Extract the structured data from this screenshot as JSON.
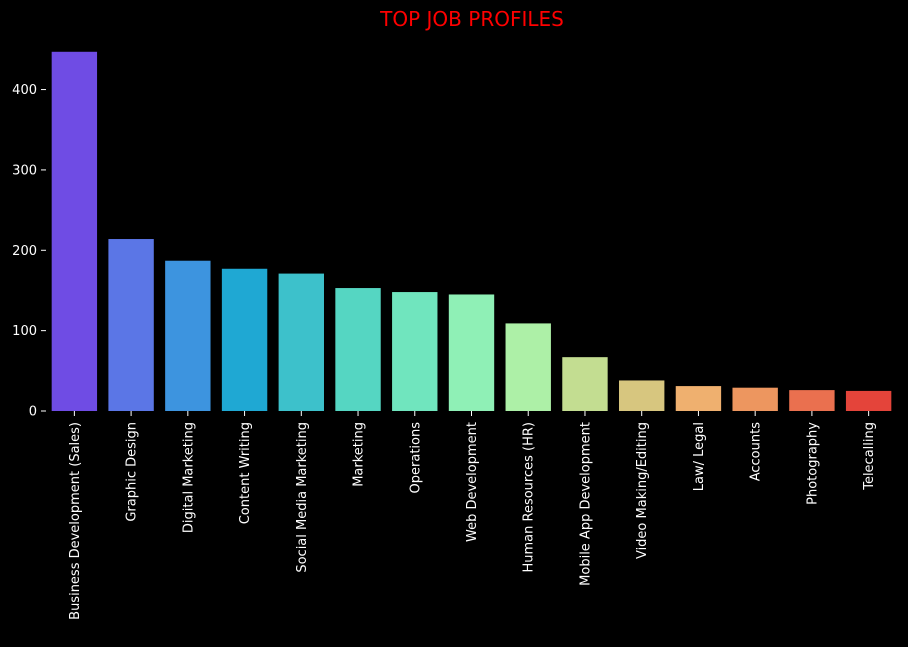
{
  "chart_data": {
    "type": "bar",
    "title": "TOP JOB PROFILES",
    "xlabel": "",
    "ylabel": "",
    "categories": [
      "Business Development (Sales)",
      "Graphic Design",
      "Digital Marketing",
      "Content Writing",
      "Social Media Marketing",
      "Marketing",
      "Operations",
      "Web Development",
      "Human Resources (HR)",
      "Mobile App Development",
      "Video Making/Editing",
      "Law/ Legal",
      "Accounts",
      "Photography",
      "Telecalling"
    ],
    "values": [
      447,
      214,
      187,
      177,
      171,
      153,
      148,
      145,
      109,
      67,
      38,
      31,
      29,
      26,
      25
    ],
    "bar_colors": [
      "#6f4ce4",
      "#5b76e6",
      "#3d94df",
      "#1fa8d3",
      "#3dc1cb",
      "#55d6c2",
      "#70e5be",
      "#8ff0b6",
      "#adf0a7",
      "#c3dd91",
      "#d7c67f",
      "#efb06f",
      "#ed965f",
      "#ea704f",
      "#e4443a"
    ],
    "yticks": [
      0,
      100,
      200,
      300,
      400
    ],
    "ylim": [
      0,
      450
    ],
    "grid": false,
    "legend": "none",
    "background": "#000000",
    "title_color": "#ff0000",
    "text_color": "#ffffff"
  }
}
